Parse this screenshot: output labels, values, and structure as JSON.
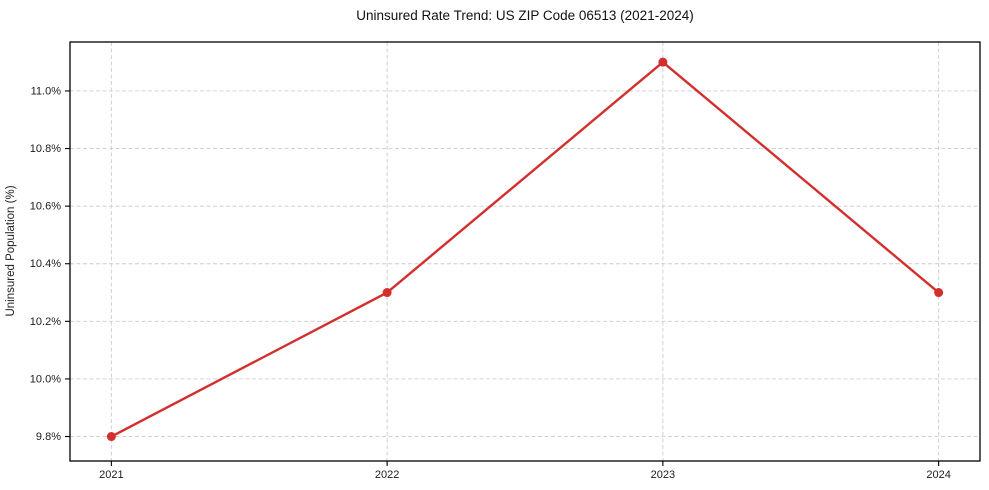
{
  "chart_data": {
    "type": "line",
    "title": "Uninsured Rate Trend: US ZIP Code 06513 (2021-2024)",
    "xlabel": "",
    "ylabel": "Uninsured Population (%)",
    "x": [
      2021,
      2022,
      2023,
      2024
    ],
    "xtick_labels": [
      "2021",
      "2022",
      "2023",
      "2024"
    ],
    "values": [
      9.8,
      10.3,
      11.1,
      10.3
    ],
    "yticks": [
      9.8,
      10.0,
      10.2,
      10.4,
      10.6,
      10.8,
      11.0
    ],
    "ytick_labels": [
      "9.8%",
      "10.0%",
      "10.2%",
      "10.4%",
      "10.6%",
      "10.8%",
      "11.0%"
    ],
    "xlim": [
      2020.85,
      2024.15
    ],
    "ylim": [
      9.715,
      11.17
    ],
    "grid": true,
    "legend": false,
    "marker": "circle",
    "colors": {
      "line": "#d32f2f",
      "grid": "#cccccc",
      "axis": "#000000",
      "background": "#ffffff"
    }
  }
}
